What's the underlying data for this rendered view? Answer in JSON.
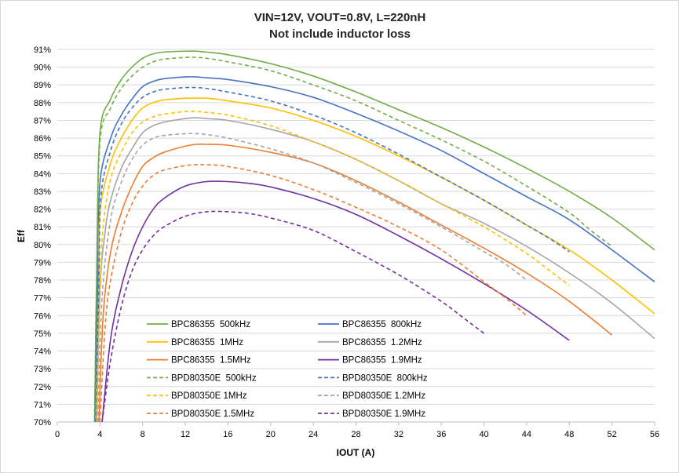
{
  "chart_data": {
    "type": "line",
    "title": "VIN=12V, VOUT=0.8V, L=220nH",
    "subtitle": "Not include inductor loss",
    "xlabel": "IOUT (A)",
    "ylabel": "Eff",
    "xlim": [
      0,
      56
    ],
    "ylim": [
      70,
      91
    ],
    "x_ticks": [
      "0",
      "4",
      "8",
      "12",
      "16",
      "20",
      "24",
      "28",
      "32",
      "36",
      "40",
      "44",
      "48",
      "52",
      "56"
    ],
    "y_ticks": [
      "70%",
      "71%",
      "72%",
      "73%",
      "74%",
      "75%",
      "76%",
      "77%",
      "78%",
      "79%",
      "80%",
      "81%",
      "82%",
      "83%",
      "84%",
      "85%",
      "86%",
      "87%",
      "88%",
      "89%",
      "90%",
      "91%"
    ],
    "grid": "horizontal",
    "legend_position": "bottom-left",
    "series": [
      {
        "name": "BPC86355  500kHz",
        "color": "#70ad47",
        "dash": "solid",
        "points": [
          [
            3.5,
            70
          ],
          [
            3.7,
            79
          ],
          [
            4,
            86.3
          ],
          [
            5,
            88.2
          ],
          [
            6,
            89.3
          ],
          [
            7,
            90.0
          ],
          [
            8,
            90.5
          ],
          [
            9,
            90.75
          ],
          [
            10,
            90.85
          ],
          [
            12,
            90.9
          ],
          [
            13,
            90.9
          ],
          [
            14,
            90.85
          ],
          [
            16,
            90.7
          ],
          [
            20,
            90.2
          ],
          [
            24,
            89.5
          ],
          [
            28,
            88.6
          ],
          [
            32,
            87.6
          ],
          [
            36,
            86.6
          ],
          [
            40,
            85.5
          ],
          [
            44,
            84.3
          ],
          [
            48,
            83.0
          ],
          [
            52,
            81.5
          ],
          [
            56,
            79.7
          ]
        ]
      },
      {
        "name": "BPC86355  800kHz",
        "color": "#4472c4",
        "dash": "solid",
        "points": [
          [
            3.5,
            70
          ],
          [
            3.8,
            78
          ],
          [
            4,
            83.5
          ],
          [
            5,
            86.0
          ],
          [
            6,
            87.3
          ],
          [
            7,
            88.2
          ],
          [
            8,
            88.9
          ],
          [
            9,
            89.2
          ],
          [
            10,
            89.35
          ],
          [
            12,
            89.45
          ],
          [
            13,
            89.45
          ],
          [
            14,
            89.4
          ],
          [
            16,
            89.3
          ],
          [
            20,
            88.9
          ],
          [
            24,
            88.3
          ],
          [
            28,
            87.4
          ],
          [
            32,
            86.4
          ],
          [
            36,
            85.3
          ],
          [
            40,
            84.0
          ],
          [
            44,
            82.7
          ],
          [
            48,
            81.4
          ],
          [
            52,
            79.7
          ],
          [
            56,
            77.9
          ]
        ]
      },
      {
        "name": "BPC86355  1MHz",
        "color": "#ffc000",
        "dash": "solid",
        "points": [
          [
            3.6,
            70
          ],
          [
            3.9,
            77
          ],
          [
            4,
            81.8
          ],
          [
            5,
            84.6
          ],
          [
            6,
            86.0
          ],
          [
            7,
            87.0
          ],
          [
            8,
            87.7
          ],
          [
            9,
            88.0
          ],
          [
            10,
            88.15
          ],
          [
            12,
            88.25
          ],
          [
            13,
            88.25
          ],
          [
            14,
            88.25
          ],
          [
            16,
            88.1
          ],
          [
            20,
            87.7
          ],
          [
            24,
            87.0
          ],
          [
            28,
            86.1
          ],
          [
            32,
            85.0
          ],
          [
            36,
            83.8
          ],
          [
            40,
            82.5
          ],
          [
            44,
            81.1
          ],
          [
            48,
            79.7
          ],
          [
            52,
            78.0
          ],
          [
            56,
            76.1
          ]
        ]
      },
      {
        "name": "BPC86355  1.2MHz",
        "color": "#a5a5a5",
        "dash": "solid",
        "points": [
          [
            3.7,
            70
          ],
          [
            4,
            77.5
          ],
          [
            4.5,
            80.8
          ],
          [
            5,
            82.5
          ],
          [
            6,
            84.3
          ],
          [
            7,
            85.4
          ],
          [
            8,
            86.3
          ],
          [
            9,
            86.7
          ],
          [
            10,
            86.9
          ],
          [
            12,
            87.1
          ],
          [
            13,
            87.15
          ],
          [
            14,
            87.1
          ],
          [
            16,
            87.0
          ],
          [
            20,
            86.5
          ],
          [
            24,
            85.8
          ],
          [
            28,
            84.8
          ],
          [
            32,
            83.6
          ],
          [
            36,
            82.3
          ],
          [
            40,
            81.2
          ],
          [
            44,
            79.9
          ],
          [
            48,
            78.4
          ],
          [
            52,
            76.7
          ],
          [
            56,
            74.7
          ]
        ]
      },
      {
        "name": "BPC86355  1.5MHz",
        "color": "#ed7d31",
        "dash": "solid",
        "points": [
          [
            3.9,
            70
          ],
          [
            4.3,
            76
          ],
          [
            5,
            79.6
          ],
          [
            6,
            81.8
          ],
          [
            7,
            83.3
          ],
          [
            8,
            84.4
          ],
          [
            9,
            84.9
          ],
          [
            10,
            85.2
          ],
          [
            12,
            85.55
          ],
          [
            13,
            85.65
          ],
          [
            14,
            85.65
          ],
          [
            16,
            85.6
          ],
          [
            20,
            85.2
          ],
          [
            24,
            84.6
          ],
          [
            28,
            83.6
          ],
          [
            32,
            82.4
          ],
          [
            36,
            81.1
          ],
          [
            40,
            79.8
          ],
          [
            44,
            78.4
          ],
          [
            48,
            76.8
          ],
          [
            52,
            74.9
          ]
        ]
      },
      {
        "name": "BPC86355  1.9MHz",
        "color": "#7030a0",
        "dash": "solid",
        "points": [
          [
            4.2,
            70
          ],
          [
            5,
            74.7
          ],
          [
            6,
            77.6
          ],
          [
            7,
            79.6
          ],
          [
            8,
            81.0
          ],
          [
            9,
            82.0
          ],
          [
            10,
            82.6
          ],
          [
            12,
            83.3
          ],
          [
            14,
            83.55
          ],
          [
            16,
            83.55
          ],
          [
            18,
            83.45
          ],
          [
            20,
            83.25
          ],
          [
            24,
            82.6
          ],
          [
            28,
            81.7
          ],
          [
            32,
            80.5
          ],
          [
            36,
            79.2
          ],
          [
            40,
            77.8
          ],
          [
            44,
            76.3
          ],
          [
            48,
            74.6
          ]
        ]
      },
      {
        "name": "BPD80350E  500kHz",
        "color": "#70ad47",
        "dash": "dashed",
        "points": [
          [
            3.5,
            70
          ],
          [
            3.7,
            78
          ],
          [
            4,
            85.8
          ],
          [
            5,
            87.7
          ],
          [
            6,
            88.8
          ],
          [
            7,
            89.5
          ],
          [
            8,
            90.0
          ],
          [
            9,
            90.3
          ],
          [
            10,
            90.45
          ],
          [
            12,
            90.55
          ],
          [
            13,
            90.55
          ],
          [
            14,
            90.5
          ],
          [
            16,
            90.3
          ],
          [
            20,
            89.8
          ],
          [
            24,
            89.0
          ],
          [
            28,
            88.1
          ],
          [
            32,
            87.0
          ],
          [
            36,
            85.9
          ],
          [
            40,
            84.7
          ],
          [
            44,
            83.3
          ],
          [
            48,
            81.8
          ],
          [
            50,
            80.8
          ],
          [
            52,
            79.9
          ]
        ]
      },
      {
        "name": "BPD80350E  800kHz",
        "color": "#4472c4",
        "dash": "dashed",
        "points": [
          [
            3.6,
            70
          ],
          [
            3.9,
            78
          ],
          [
            4.1,
            82.8
          ],
          [
            5,
            85.3
          ],
          [
            6,
            86.8
          ],
          [
            7,
            87.7
          ],
          [
            8,
            88.3
          ],
          [
            9,
            88.6
          ],
          [
            10,
            88.75
          ],
          [
            12,
            88.85
          ],
          [
            13,
            88.85
          ],
          [
            14,
            88.8
          ],
          [
            16,
            88.6
          ],
          [
            20,
            88.1
          ],
          [
            24,
            87.3
          ],
          [
            28,
            86.3
          ],
          [
            32,
            85.1
          ],
          [
            36,
            83.8
          ],
          [
            40,
            82.5
          ],
          [
            44,
            81.1
          ],
          [
            46,
            80.4
          ],
          [
            48,
            79.6
          ]
        ]
      },
      {
        "name": "BPD80350E 1MHz",
        "color": "#ffc000",
        "dash": "dashed",
        "points": [
          [
            3.7,
            70
          ],
          [
            4,
            77
          ],
          [
            4.3,
            81
          ],
          [
            5,
            83.7
          ],
          [
            6,
            85.2
          ],
          [
            7,
            86.3
          ],
          [
            8,
            86.9
          ],
          [
            9,
            87.2
          ],
          [
            10,
            87.35
          ],
          [
            12,
            87.5
          ],
          [
            13,
            87.5
          ],
          [
            14,
            87.45
          ],
          [
            16,
            87.3
          ],
          [
            20,
            86.7
          ],
          [
            24,
            85.8
          ],
          [
            28,
            84.8
          ],
          [
            32,
            83.6
          ],
          [
            36,
            82.3
          ],
          [
            40,
            81.0
          ],
          [
            44,
            79.5
          ],
          [
            46,
            78.6
          ],
          [
            48,
            77.7
          ]
        ]
      },
      {
        "name": "BPD80350E 1.2MHz",
        "color": "#a5a5a5",
        "dash": "dashed",
        "points": [
          [
            3.8,
            70
          ],
          [
            4.2,
            77
          ],
          [
            5,
            81.4
          ],
          [
            6,
            83.5
          ],
          [
            7,
            84.8
          ],
          [
            8,
            85.6
          ],
          [
            9,
            86.0
          ],
          [
            10,
            86.15
          ],
          [
            12,
            86.25
          ],
          [
            13,
            86.25
          ],
          [
            14,
            86.2
          ],
          [
            16,
            86.0
          ],
          [
            20,
            85.4
          ],
          [
            24,
            84.6
          ],
          [
            28,
            83.5
          ],
          [
            32,
            82.3
          ],
          [
            36,
            81.0
          ],
          [
            40,
            79.6
          ],
          [
            42,
            78.9
          ],
          [
            44,
            78.0
          ]
        ]
      },
      {
        "name": "BPD80350E 1.5MHz",
        "color": "#ed7d31",
        "dash": "dashed",
        "points": [
          [
            4,
            70
          ],
          [
            4.5,
            75.5
          ],
          [
            5,
            78.0
          ],
          [
            6,
            80.7
          ],
          [
            7,
            82.3
          ],
          [
            8,
            83.3
          ],
          [
            9,
            83.9
          ],
          [
            10,
            84.2
          ],
          [
            12,
            84.45
          ],
          [
            13,
            84.5
          ],
          [
            14,
            84.5
          ],
          [
            16,
            84.4
          ],
          [
            20,
            83.9
          ],
          [
            24,
            83.1
          ],
          [
            28,
            82.1
          ],
          [
            32,
            81.0
          ],
          [
            36,
            79.7
          ],
          [
            40,
            77.9
          ],
          [
            42,
            77.0
          ],
          [
            44,
            76.0
          ]
        ]
      },
      {
        "name": "BPD80350E 1.9MHz",
        "color": "#7030a0",
        "dash": "dashed",
        "points": [
          [
            4.2,
            70
          ],
          [
            5,
            73.5
          ],
          [
            6,
            76.5
          ],
          [
            7,
            78.5
          ],
          [
            8,
            79.7
          ],
          [
            9,
            80.5
          ],
          [
            10,
            81.0
          ],
          [
            12,
            81.6
          ],
          [
            14,
            81.85
          ],
          [
            16,
            81.85
          ],
          [
            18,
            81.75
          ],
          [
            20,
            81.5
          ],
          [
            24,
            80.8
          ],
          [
            28,
            79.6
          ],
          [
            32,
            78.3
          ],
          [
            36,
            76.8
          ],
          [
            38,
            75.9
          ],
          [
            40,
            75.0
          ]
        ]
      }
    ]
  }
}
